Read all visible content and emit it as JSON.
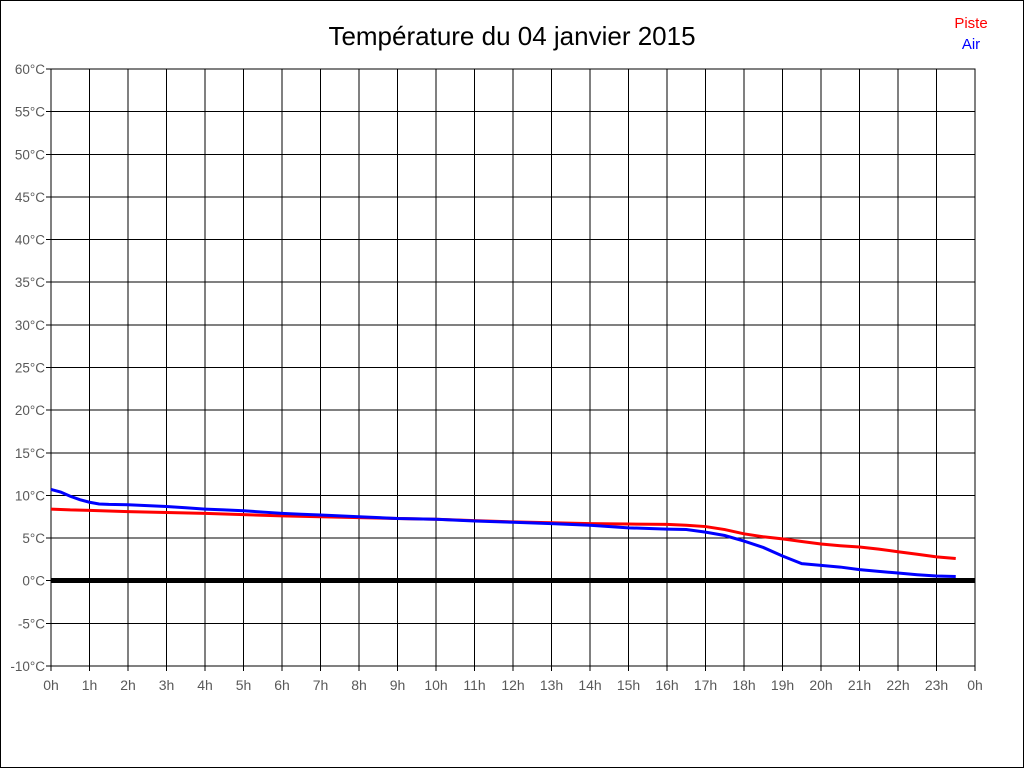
{
  "chart": {
    "title": "Température du 04 janvier 2015",
    "legend": [
      {
        "label": "Piste",
        "color": "#ff0000"
      },
      {
        "label": "Air",
        "color": "#0000ff"
      }
    ]
  },
  "chart_data": {
    "type": "line",
    "title": "Température du 04 janvier 2015",
    "xlabel": "",
    "ylabel": "",
    "x_unit": "hours",
    "xlim": [
      0,
      24
    ],
    "ylim": [
      -10,
      60
    ],
    "grid": true,
    "legend_position": "top-right",
    "zero_line_value": 0,
    "x_tick_labels": [
      "0h",
      "1h",
      "2h",
      "3h",
      "4h",
      "5h",
      "6h",
      "7h",
      "8h",
      "9h",
      "10h",
      "11h",
      "12h",
      "13h",
      "14h",
      "15h",
      "16h",
      "17h",
      "18h",
      "19h",
      "20h",
      "21h",
      "22h",
      "23h",
      "0h"
    ],
    "y_tick_labels": [
      "60°C",
      "55°C",
      "50°C",
      "45°C",
      "40°C",
      "35°C",
      "30°C",
      "25°C",
      "20°C",
      "15°C",
      "10°C",
      "5°C",
      "0°C",
      "-5°C",
      "-10°C"
    ],
    "series": [
      {
        "name": "Piste",
        "color": "#ff0000",
        "points": [
          [
            0,
            8.4
          ],
          [
            0.5,
            8.3
          ],
          [
            1,
            8.25
          ],
          [
            2,
            8.1
          ],
          [
            3,
            8.0
          ],
          [
            4,
            7.9
          ],
          [
            5,
            7.75
          ],
          [
            6,
            7.6
          ],
          [
            7,
            7.5
          ],
          [
            8,
            7.4
          ],
          [
            9,
            7.3
          ],
          [
            10,
            7.2
          ],
          [
            11,
            7.05
          ],
          [
            12,
            6.9
          ],
          [
            13,
            6.8
          ],
          [
            14,
            6.7
          ],
          [
            15,
            6.65
          ],
          [
            16,
            6.6
          ],
          [
            16.5,
            6.5
          ],
          [
            17,
            6.35
          ],
          [
            17.5,
            6.0
          ],
          [
            18,
            5.5
          ],
          [
            18.5,
            5.15
          ],
          [
            19,
            4.9
          ],
          [
            19.5,
            4.6
          ],
          [
            20,
            4.3
          ],
          [
            20.5,
            4.1
          ],
          [
            21,
            3.95
          ],
          [
            21.5,
            3.7
          ],
          [
            22,
            3.4
          ],
          [
            22.5,
            3.1
          ],
          [
            23,
            2.8
          ],
          [
            23.5,
            2.6
          ]
        ]
      },
      {
        "name": "Air",
        "color": "#0000ff",
        "points": [
          [
            0,
            10.7
          ],
          [
            0.25,
            10.4
          ],
          [
            0.5,
            9.9
          ],
          [
            0.75,
            9.5
          ],
          [
            1,
            9.2
          ],
          [
            1.25,
            9.0
          ],
          [
            1.5,
            8.95
          ],
          [
            2,
            8.9
          ],
          [
            2.5,
            8.8
          ],
          [
            3,
            8.7
          ],
          [
            3.5,
            8.55
          ],
          [
            4,
            8.4
          ],
          [
            4.5,
            8.3
          ],
          [
            5,
            8.2
          ],
          [
            5.5,
            8.05
          ],
          [
            6,
            7.9
          ],
          [
            6.5,
            7.8
          ],
          [
            7,
            7.7
          ],
          [
            7.5,
            7.6
          ],
          [
            8,
            7.5
          ],
          [
            9,
            7.3
          ],
          [
            10,
            7.2
          ],
          [
            11,
            7.0
          ],
          [
            12,
            6.85
          ],
          [
            13,
            6.7
          ],
          [
            14,
            6.5
          ],
          [
            15,
            6.2
          ],
          [
            16,
            6.05
          ],
          [
            16.5,
            6.0
          ],
          [
            17,
            5.7
          ],
          [
            17.5,
            5.3
          ],
          [
            18,
            4.65
          ],
          [
            18.5,
            3.9
          ],
          [
            19,
            2.9
          ],
          [
            19.5,
            2.0
          ],
          [
            20,
            1.8
          ],
          [
            20.5,
            1.6
          ],
          [
            21,
            1.3
          ],
          [
            21.5,
            1.1
          ],
          [
            22,
            0.9
          ],
          [
            22.5,
            0.7
          ],
          [
            23,
            0.55
          ],
          [
            23.5,
            0.5
          ]
        ]
      }
    ]
  }
}
